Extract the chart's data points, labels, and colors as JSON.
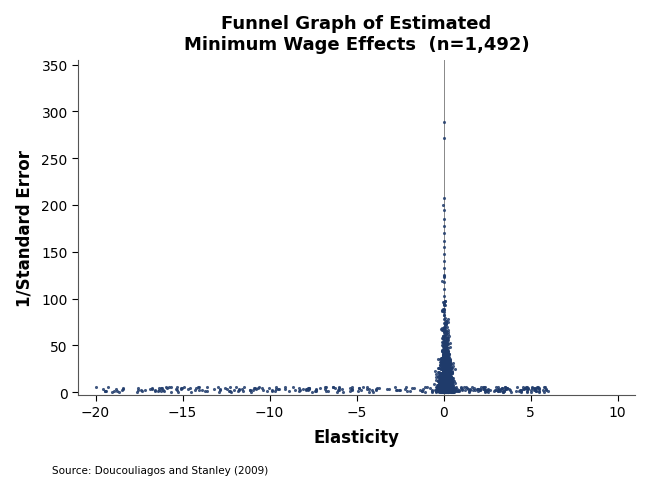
{
  "title": "Funnel Graph of Estimated\nMinimum Wage Effects  (n=1,492)",
  "xlabel": "Elasticity",
  "ylabel": "1/Standard Error",
  "xlim": [
    -21,
    11
  ],
  "ylim": [
    -3,
    355
  ],
  "xticks": [
    -20,
    -15,
    -10,
    -5,
    0,
    5,
    10
  ],
  "yticks": [
    0,
    50,
    100,
    150,
    200,
    250,
    300,
    350
  ],
  "dot_color": "#1F3B6B",
  "dot_size": 5,
  "vline_x": 0,
  "source_text": "Source: Doucouliagos and Stanley (2009)",
  "n_points": 1492,
  "title_fontsize": 13,
  "label_fontsize": 12,
  "tick_fontsize": 10
}
